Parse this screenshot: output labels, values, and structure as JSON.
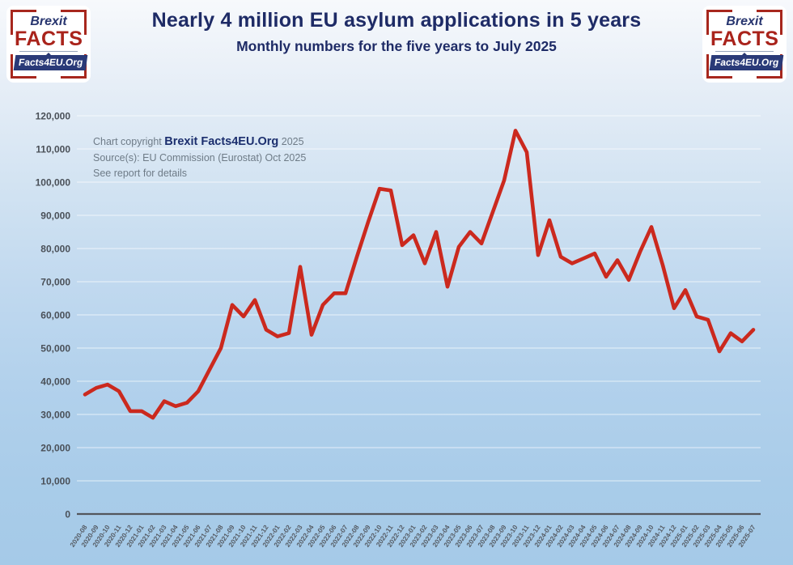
{
  "header": {
    "title": "Nearly 4 million EU asylum applications in 5 years",
    "subtitle": "Monthly numbers for the five years to July 2025"
  },
  "logo": {
    "brexit": "Brexit",
    "facts": "FACTS",
    "site": "Facts4EU.Org"
  },
  "annotation": {
    "copyright_prefix": "Chart copyright ",
    "copyright_brand": "Brexit Facts4EU.Org",
    "copyright_year": " 2025",
    "source": "Source(s): EU Commission (Eurostat) Oct 2025",
    "note": "See report for details"
  },
  "colors": {
    "line": "#cb291e",
    "navy": "#1e2b66",
    "logo_red": "#a7271d",
    "axis_text": "#4a5058",
    "baseline": "#53565c",
    "gridline": "rgba(255,255,255,0.55)"
  },
  "chart_data": {
    "type": "line",
    "title": "Nearly 4 million EU asylum applications in 5 years",
    "subtitle": "Monthly numbers for the five years to July 2025",
    "xlabel": "",
    "ylabel": "",
    "ylim": [
      0,
      120000
    ],
    "ytick_step": 10000,
    "grid": true,
    "legend": "none",
    "x": [
      "2020-08",
      "2020-09",
      "2020-10",
      "2020-11",
      "2020-12",
      "2021-01",
      "2021-02",
      "2021-03",
      "2021-04",
      "2021-05",
      "2021-06",
      "2021-07",
      "2021-08",
      "2021-09",
      "2021-10",
      "2021-11",
      "2021-12",
      "2022-01",
      "2022-02",
      "2022-03",
      "2022-04",
      "2022-05",
      "2022-06",
      "2022-07",
      "2022-08",
      "2022-09",
      "2022-10",
      "2022-11",
      "2022-12",
      "2023-01",
      "2023-02",
      "2023-03",
      "2023-04",
      "2023-05",
      "2023-06",
      "2023-07",
      "2023-08",
      "2023-09",
      "2023-10",
      "2023-11",
      "2023-12",
      "2024-01",
      "2024-02",
      "2024-03",
      "2024-04",
      "2024-05",
      "2024-06",
      "2024-07",
      "2024-08",
      "2024-09",
      "2024-10",
      "2024-11",
      "2024-12",
      "2025-01",
      "2025-02",
      "2025-03",
      "2025-04",
      "2025-05",
      "2025-06",
      "2025-07"
    ],
    "values": [
      36000,
      38000,
      39000,
      37000,
      31000,
      31000,
      29000,
      34000,
      32500,
      33500,
      37000,
      43500,
      50000,
      63000,
      59500,
      64500,
      55500,
      53500,
      54500,
      74500,
      54000,
      63000,
      66500,
      66500,
      77500,
      88000,
      98000,
      97500,
      81000,
      84000,
      75500,
      85000,
      68500,
      80500,
      85000,
      81500,
      91000,
      100500,
      115500,
      109000,
      78000,
      88500,
      77500,
      75500,
      77000,
      78500,
      71500,
      76500,
      70500,
      79000,
      86500,
      75000,
      62000,
      67500,
      59500,
      58500,
      49000,
      54500,
      52000,
      55500
    ]
  }
}
